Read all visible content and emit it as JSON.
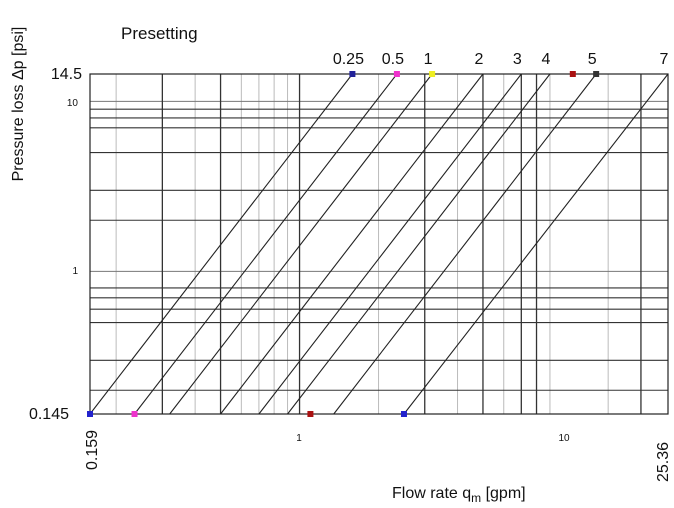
{
  "chart_data": {
    "type": "line",
    "title": "",
    "ylabel": "Pressure loss Δp [psi]",
    "xlabel_main": "Flow rate q",
    "xlabel_sub": "m",
    "xlabel_unit": " [gpm]",
    "x_scale": "log",
    "y_scale": "log",
    "xlim": [
      0.159,
      25.36
    ],
    "ylim": [
      0.145,
      14.5
    ],
    "grid": true,
    "legend_title": "Presetting",
    "x_ticks": [
      "1",
      "10"
    ],
    "y_ticks": [
      "1",
      "10"
    ],
    "x_edge_labels": [
      "0.159",
      "25.36"
    ],
    "y_edge_labels": [
      "0.145",
      "14.5"
    ],
    "x_major_lines": [
      0.3,
      0.5,
      1,
      3,
      5,
      7,
      8,
      20
    ],
    "x_minor_lines": [
      0.2,
      0.4,
      0.6,
      0.7,
      0.8,
      0.9,
      2,
      4,
      6,
      9,
      15
    ],
    "y_major_lines": [
      0.2,
      0.3,
      0.5,
      0.6,
      0.7,
      0.8,
      2,
      3,
      5,
      7,
      8,
      9
    ],
    "series": [
      {
        "name": "0.25",
        "x": [
          0.159,
          1.59
        ],
        "y": [
          0.145,
          14.5
        ]
      },
      {
        "name": "0.5",
        "x": [
          0.235,
          2.35
        ],
        "y": [
          0.145,
          14.5
        ]
      },
      {
        "name": "1",
        "x": [
          0.32,
          3.2
        ],
        "y": [
          0.145,
          14.5
        ]
      },
      {
        "name": "2",
        "x": [
          0.5,
          5.0
        ],
        "y": [
          0.145,
          14.5
        ]
      },
      {
        "name": "3",
        "x": [
          0.7,
          7.0
        ],
        "y": [
          0.145,
          14.5
        ]
      },
      {
        "name": "4",
        "x": [
          0.9,
          9.0
        ],
        "y": [
          0.145,
          14.5
        ]
      },
      {
        "name": "5",
        "x": [
          1.35,
          13.5
        ],
        "y": [
          0.145,
          14.5
        ]
      },
      {
        "name": "7",
        "x": [
          2.5,
          25.36
        ],
        "y": [
          0.145,
          14.5
        ]
      }
    ],
    "markers": [
      {
        "x": 0.159,
        "y": 0.145,
        "color": "#2222cc"
      },
      {
        "x": 0.235,
        "y": 0.145,
        "color": "#ee33cc"
      },
      {
        "x": 1.1,
        "y": 0.145,
        "color": "#aa1111"
      },
      {
        "x": 2.5,
        "y": 0.145,
        "color": "#2222cc"
      },
      {
        "x": 1.59,
        "y": 14.5,
        "color": "#222299"
      },
      {
        "x": 2.35,
        "y": 14.5,
        "color": "#ee33cc"
      },
      {
        "x": 3.2,
        "y": 14.5,
        "color": "#eeee22"
      },
      {
        "x": 11.0,
        "y": 14.5,
        "color": "#aa1111"
      },
      {
        "x": 13.5,
        "y": 14.5,
        "color": "#333333"
      }
    ]
  }
}
